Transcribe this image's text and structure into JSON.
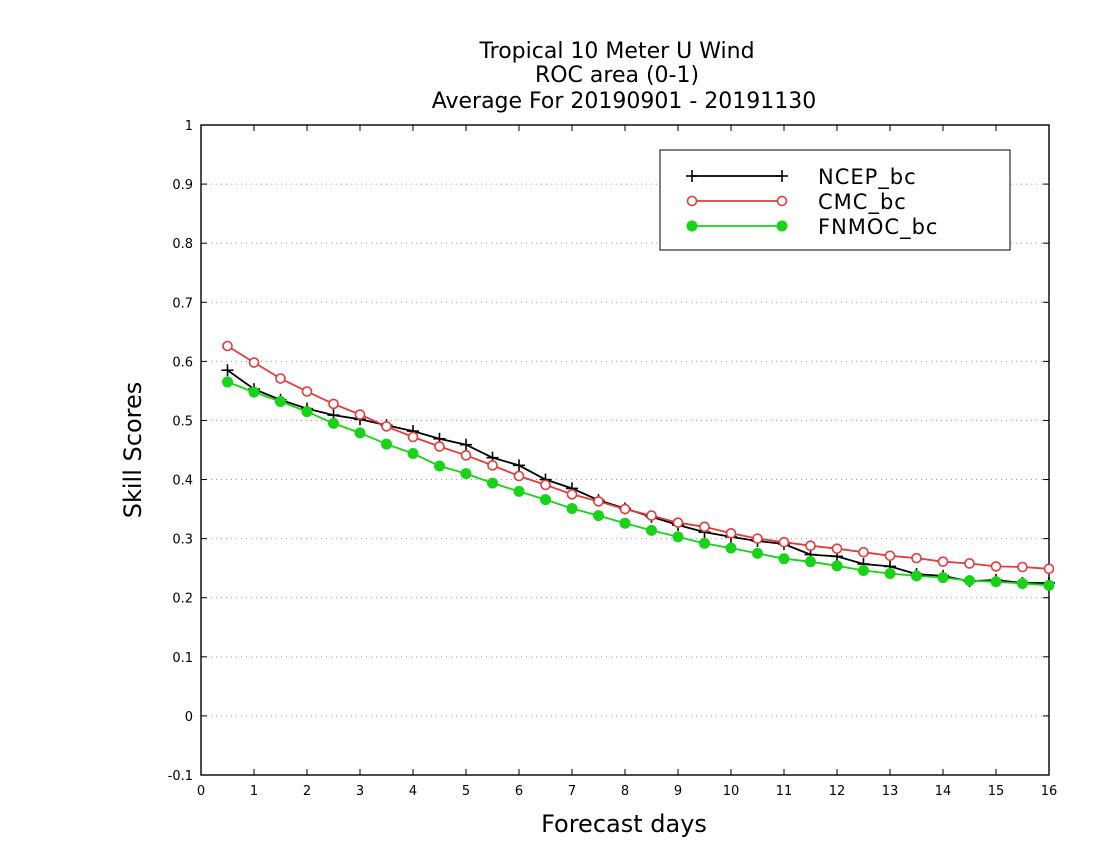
{
  "chart_data": {
    "type": "line",
    "title": "Tropical 10 Meter U Wind",
    "subtitle": "ROC area (0-1)",
    "subtitle2": "Average For 20190901 - 20191130",
    "xlabel": "Forecast days",
    "ylabel": "Skill Scores",
    "xlim": [
      0,
      16
    ],
    "ylim": [
      -0.1,
      1
    ],
    "xticks": [
      0,
      1,
      2,
      3,
      4,
      5,
      6,
      7,
      8,
      9,
      10,
      11,
      12,
      13,
      14,
      15,
      16
    ],
    "xtick_labels": [
      "0",
      "1",
      "2",
      "3",
      "4",
      "5",
      "6",
      "7",
      "8",
      "9",
      "10",
      "11",
      "12",
      "13",
      "14",
      "15",
      "16"
    ],
    "yticks": [
      -0.1,
      0,
      0.1,
      0.2,
      0.3,
      0.4,
      0.5,
      0.6,
      0.7,
      0.8,
      0.9,
      1
    ],
    "ytick_labels": [
      "-0.1",
      "0",
      "0.1",
      "0.2",
      "0.3",
      "0.4",
      "0.5",
      "0.6",
      "0.7",
      "0.8",
      "0.9",
      "1"
    ],
    "grid": "horizontal dotted",
    "legend_position": "top-right",
    "x": [
      0.5,
      1,
      1.5,
      2,
      2.5,
      3,
      3.5,
      4,
      4.5,
      5,
      5.5,
      6,
      6.5,
      7,
      7.5,
      8,
      8.5,
      9,
      9.5,
      10,
      10.5,
      11,
      11.5,
      12,
      12.5,
      13,
      13.5,
      14,
      14.5,
      15,
      15.5,
      16
    ],
    "series": [
      {
        "name": "NCEP_bc",
        "color": "#000000",
        "marker": "plus",
        "values": [
          0.585,
          0.553,
          0.535,
          0.52,
          0.509,
          0.502,
          0.492,
          0.482,
          0.469,
          0.459,
          0.437,
          0.424,
          0.4,
          0.385,
          0.365,
          0.351,
          0.337,
          0.323,
          0.311,
          0.303,
          0.296,
          0.291,
          0.273,
          0.27,
          0.257,
          0.253,
          0.24,
          0.237,
          0.228,
          0.23,
          0.225,
          0.225
        ]
      },
      {
        "name": "CMC_bc",
        "color": "#e23c3c",
        "marker": "open-circle",
        "values": [
          0.626,
          0.598,
          0.571,
          0.549,
          0.528,
          0.51,
          0.49,
          0.472,
          0.456,
          0.441,
          0.424,
          0.406,
          0.391,
          0.375,
          0.363,
          0.35,
          0.339,
          0.327,
          0.32,
          0.309,
          0.3,
          0.294,
          0.288,
          0.283,
          0.277,
          0.271,
          0.267,
          0.261,
          0.258,
          0.253,
          0.252,
          0.249
        ]
      },
      {
        "name": "FNMOC_bc",
        "color": "#19d219",
        "marker": "filled-circle",
        "values": [
          0.565,
          0.548,
          0.532,
          0.515,
          0.495,
          0.479,
          0.46,
          0.444,
          0.423,
          0.41,
          0.394,
          0.38,
          0.366,
          0.351,
          0.339,
          0.326,
          0.314,
          0.303,
          0.292,
          0.284,
          0.275,
          0.266,
          0.261,
          0.254,
          0.246,
          0.241,
          0.237,
          0.234,
          0.229,
          0.227,
          0.224,
          0.221
        ]
      }
    ]
  }
}
